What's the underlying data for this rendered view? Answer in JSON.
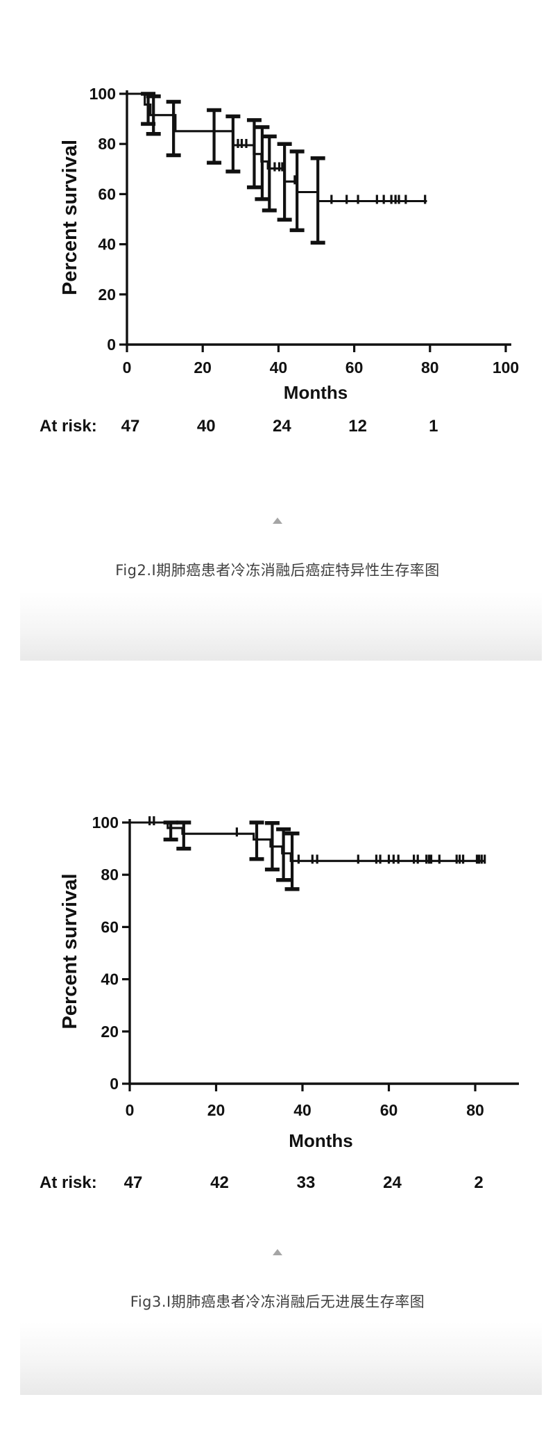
{
  "page": {
    "background_color": "#ffffff"
  },
  "figures": [
    {
      "id": "fig2",
      "caption": "Fig2.I期肺癌患者冷冻消融后癌症特异性生存率图",
      "collapse_icon": "triangle-up-icon",
      "collapse_icon_color": "#a5a5a5"
    },
    {
      "id": "fig3",
      "caption": "Fig3.I期肺癌患者冷冻消融后无进展生存率图",
      "collapse_icon": "triangle-up-icon",
      "collapse_icon_color": "#a5a5a5"
    }
  ],
  "chart_data": [
    {
      "type": "line",
      "subtype": "kaplan-meier-step",
      "title": "",
      "xlabel": "Months",
      "ylabel": "Percent survival",
      "xlim": [
        0,
        101
      ],
      "ylim": [
        0,
        100
      ],
      "xticks": [
        0,
        20,
        40,
        60,
        80,
        100
      ],
      "yticks": [
        0,
        20,
        40,
        60,
        80,
        100
      ],
      "grid": false,
      "legend": "none",
      "line_color": "#111111",
      "steps": [
        [
          0,
          100
        ],
        [
          4.7,
          95.7
        ],
        [
          6.2,
          91.5
        ],
        [
          12.8,
          85.1
        ],
        [
          28,
          79.5
        ],
        [
          33.5,
          76
        ],
        [
          35.5,
          73
        ],
        [
          37.2,
          70.2
        ],
        [
          41.6,
          65
        ],
        [
          44.9,
          60.8
        ],
        [
          50.4,
          57.2
        ]
      ],
      "end_x": 79.2,
      "error_bars": [
        {
          "x": 5.6,
          "lo": 88.0,
          "hi": 100.0
        },
        {
          "x": 7.0,
          "lo": 84.0,
          "hi": 99.0
        },
        {
          "x": 12.3,
          "lo": 75.5,
          "hi": 96.8
        },
        {
          "x": 23.0,
          "lo": 72.5,
          "hi": 93.5
        },
        {
          "x": 28.0,
          "lo": 69.0,
          "hi": 91.0
        },
        {
          "x": 33.6,
          "lo": 62.7,
          "hi": 89.5
        },
        {
          "x": 35.7,
          "lo": 58.0,
          "hi": 86.7
        },
        {
          "x": 37.6,
          "lo": 53.5,
          "hi": 83.0
        },
        {
          "x": 41.6,
          "lo": 49.8,
          "hi": 80.0
        },
        {
          "x": 44.9,
          "lo": 45.6,
          "hi": 77.0
        },
        {
          "x": 50.4,
          "lo": 40.6,
          "hi": 74.3
        }
      ],
      "censor_marks": [
        [
          29.3,
          79.5
        ],
        [
          30.3,
          79.5
        ],
        [
          31.5,
          79.5
        ],
        [
          39.0,
          70.2
        ],
        [
          40.2,
          70.2
        ],
        [
          41.0,
          70.2
        ],
        [
          44.3,
          65.0
        ],
        [
          54.0,
          57.2
        ],
        [
          58.0,
          57.2
        ],
        [
          61.0,
          57.2
        ],
        [
          66.0,
          57.2
        ],
        [
          67.8,
          57.2
        ],
        [
          69.8,
          57.2
        ],
        [
          70.9,
          57.2
        ],
        [
          71.8,
          57.2
        ],
        [
          73.6,
          57.2
        ],
        [
          78.7,
          57.2
        ]
      ],
      "at_risk": {
        "label": "At risk:",
        "months": [
          0,
          20,
          40,
          60,
          80
        ],
        "counts": [
          "47",
          "40",
          "24",
          "12",
          "1"
        ]
      }
    },
    {
      "type": "line",
      "subtype": "kaplan-meier-step",
      "title": "",
      "xlabel": "Months",
      "ylabel": "Percent survival",
      "xlim": [
        0,
        90
      ],
      "ylim": [
        0,
        100
      ],
      "xticks": [
        0,
        20,
        40,
        60,
        80
      ],
      "yticks": [
        0,
        20,
        40,
        60,
        80,
        100
      ],
      "grid": false,
      "legend": "none",
      "line_color": "#111111",
      "steps": [
        [
          0,
          100
        ],
        [
          8.8,
          97.9
        ],
        [
          12.2,
          95.7
        ],
        [
          28.7,
          93.5
        ],
        [
          32.6,
          90.8
        ],
        [
          35.3,
          88.2
        ],
        [
          37.3,
          85.3
        ]
      ],
      "end_x": 82.3,
      "error_bars": [
        {
          "x": 9.5,
          "lo": 93.5,
          "hi": 100.0
        },
        {
          "x": 12.5,
          "lo": 90.0,
          "hi": 100.0
        },
        {
          "x": 29.4,
          "lo": 86.0,
          "hi": 100.0
        },
        {
          "x": 33.0,
          "lo": 82.0,
          "hi": 99.8
        },
        {
          "x": 35.6,
          "lo": 78.0,
          "hi": 97.4
        },
        {
          "x": 37.6,
          "lo": 74.5,
          "hi": 95.8
        }
      ],
      "censor_marks": [
        [
          4.6,
          100
        ],
        [
          5.6,
          100
        ],
        [
          24.8,
          95.7
        ],
        [
          39.1,
          85.3
        ],
        [
          42.3,
          85.3
        ],
        [
          43.4,
          85.3
        ],
        [
          52.9,
          85.3
        ],
        [
          57.1,
          85.3
        ],
        [
          58.0,
          85.3
        ],
        [
          60.0,
          85.3
        ],
        [
          61.1,
          85.3
        ],
        [
          62.2,
          85.3
        ],
        [
          65.8,
          85.3
        ],
        [
          66.7,
          85.3
        ],
        [
          68.7,
          85.3
        ],
        [
          69.3,
          85.3
        ],
        [
          69.8,
          85.3
        ],
        [
          71.7,
          85.3
        ],
        [
          75.7,
          85.3
        ],
        [
          76.4,
          85.3
        ],
        [
          77.2,
          85.3
        ],
        [
          80.4,
          85.3
        ],
        [
          80.9,
          85.3
        ],
        [
          81.5,
          85.3
        ],
        [
          82.2,
          85.3
        ]
      ],
      "at_risk": {
        "label": "At risk:",
        "months": [
          0,
          20,
          40,
          60,
          80
        ],
        "counts": [
          "47",
          "42",
          "33",
          "24",
          "2"
        ]
      }
    }
  ]
}
